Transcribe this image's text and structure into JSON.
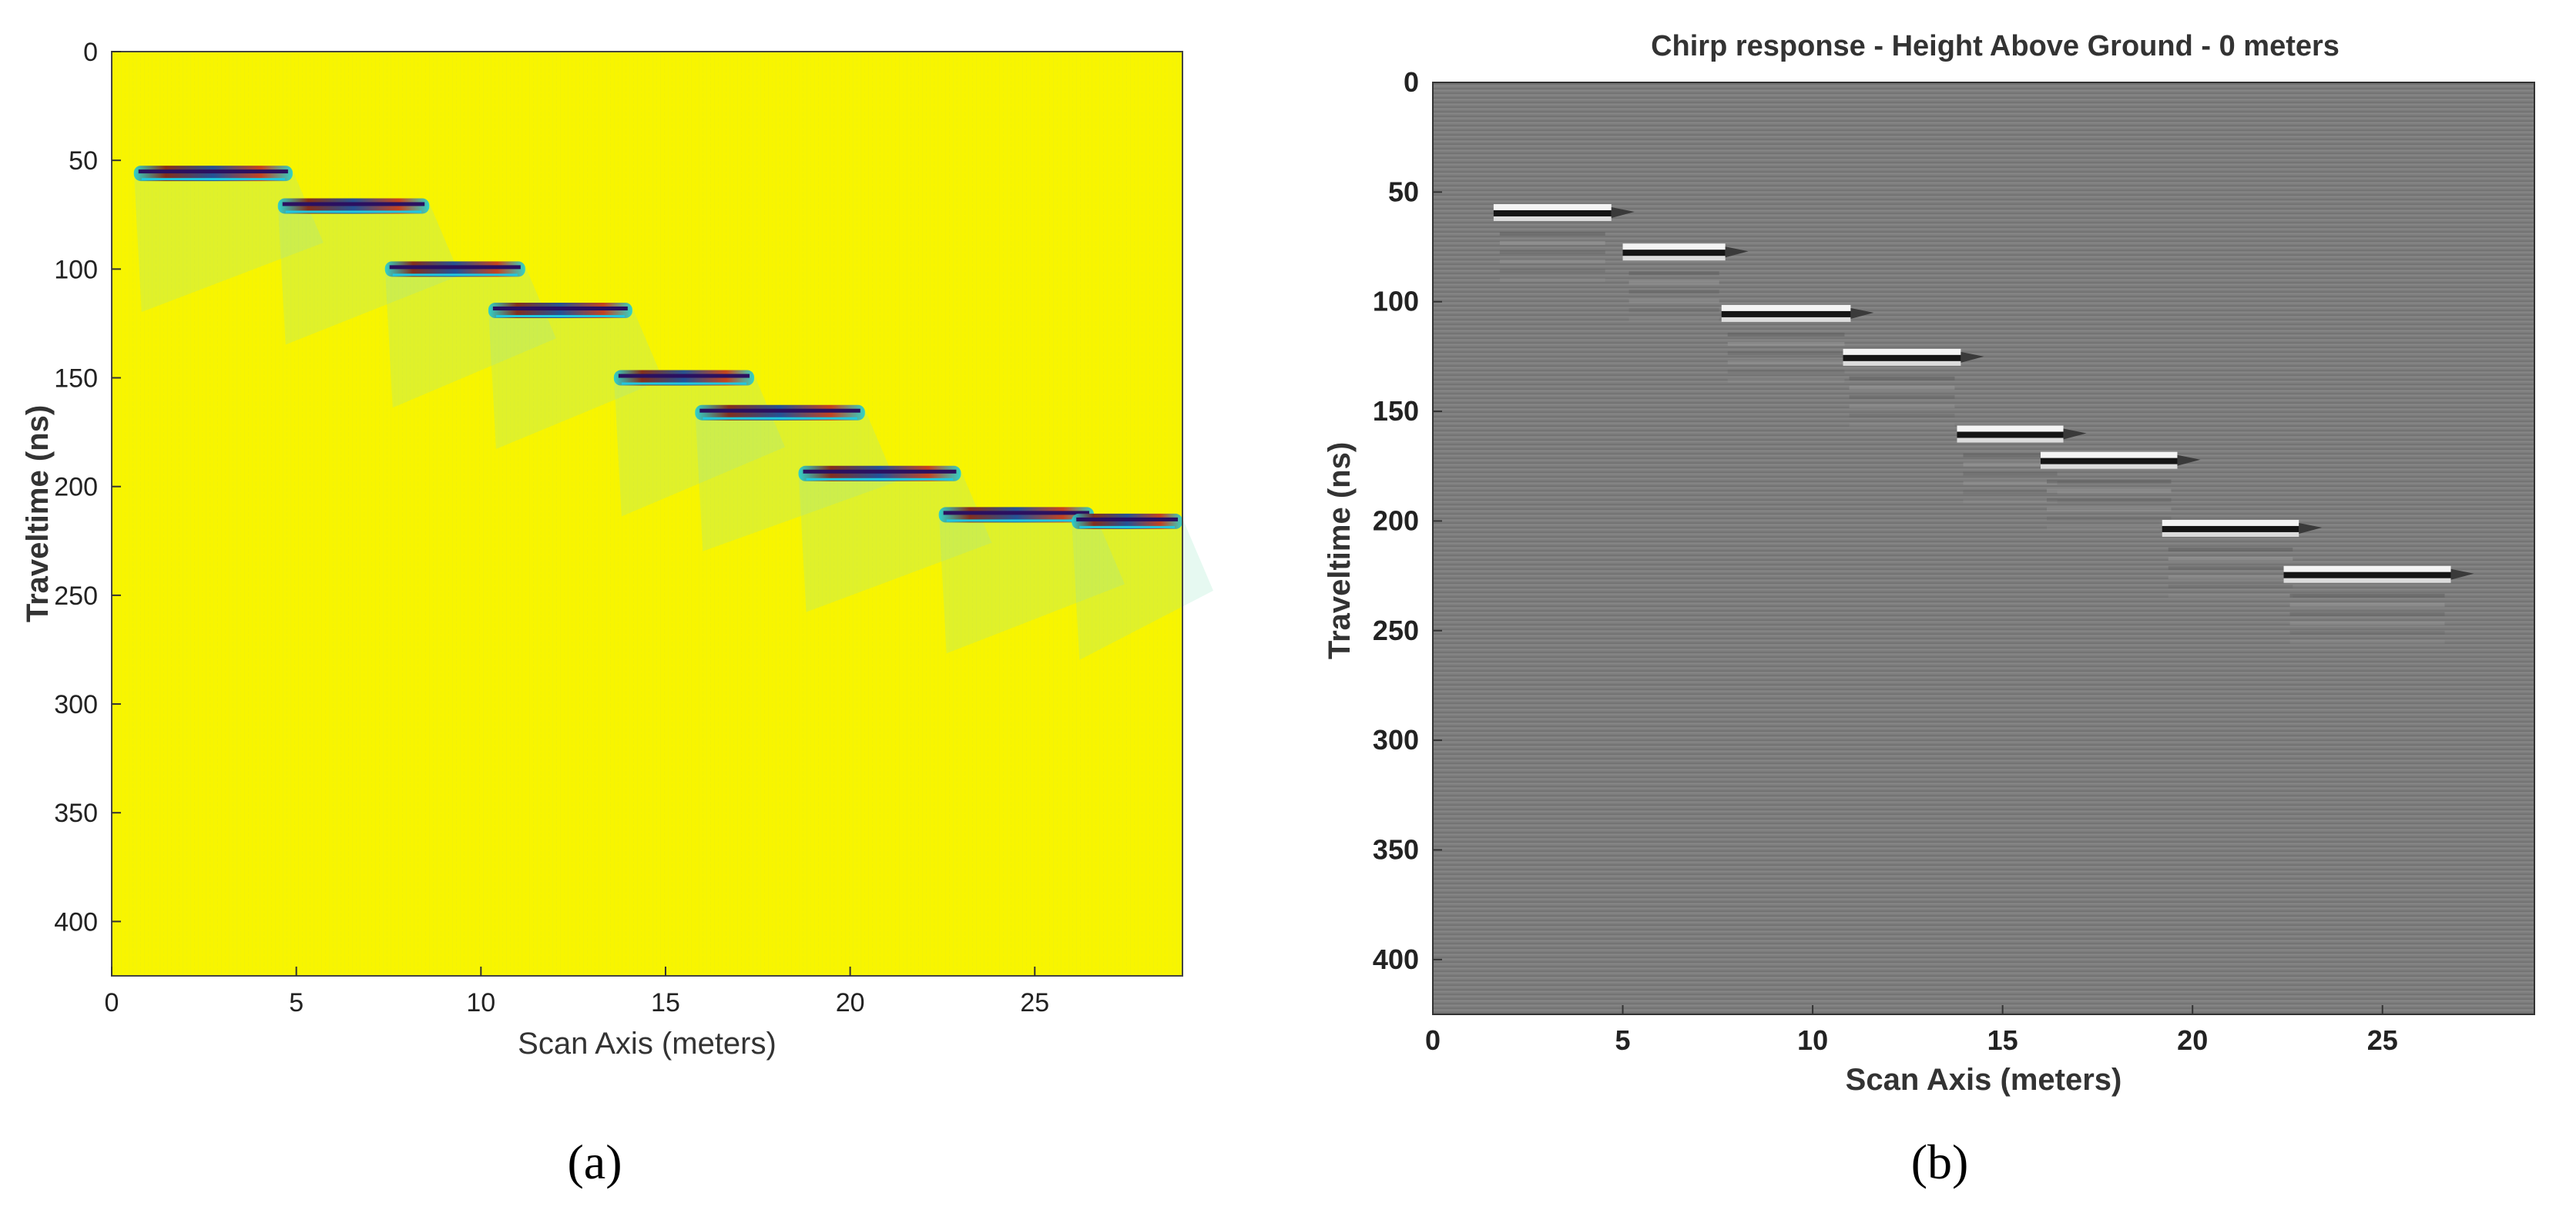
{
  "figure": {
    "panel_labels": [
      "(a)",
      "(b)"
    ]
  },
  "chart_data": [
    {
      "type": "heatmap",
      "panel": "(a)",
      "title": "",
      "xlabel": "Scan Axis (meters)",
      "ylabel": "Traveltime (ns)",
      "xlim": [
        0,
        29
      ],
      "ylim": [
        0,
        425
      ],
      "y_reversed": true,
      "xticks": [
        0,
        5,
        10,
        15,
        20,
        25
      ],
      "yticks": [
        0,
        50,
        100,
        150,
        200,
        250,
        300,
        350,
        400
      ],
      "colormap": "parula",
      "background_color": "#f8f500",
      "reflections": [
        {
          "x_start": 0.6,
          "x_end": 4.9,
          "t": 56
        },
        {
          "x_start": 4.5,
          "x_end": 8.6,
          "t": 71
        },
        {
          "x_start": 7.4,
          "x_end": 11.2,
          "t": 100
        },
        {
          "x_start": 10.2,
          "x_end": 14.1,
          "t": 119
        },
        {
          "x_start": 13.6,
          "x_end": 17.4,
          "t": 150
        },
        {
          "x_start": 15.8,
          "x_end": 20.4,
          "t": 166
        },
        {
          "x_start": 18.6,
          "x_end": 23.0,
          "t": 194
        },
        {
          "x_start": 22.4,
          "x_end": 26.6,
          "t": 213
        },
        {
          "x_start": 26.0,
          "x_end": 29.0,
          "t": 216
        }
      ]
    },
    {
      "type": "heatmap",
      "panel": "(b)",
      "title": "Chirp response - Height Above Ground - 0 meters",
      "xlabel": "Scan Axis (meters)",
      "ylabel": "Traveltime (ns)",
      "xlim": [
        0,
        29
      ],
      "ylim": [
        0,
        425
      ],
      "y_reversed": true,
      "xticks": [
        0,
        5,
        10,
        15,
        20,
        25
      ],
      "yticks": [
        0,
        50,
        100,
        150,
        200,
        250,
        300,
        350,
        400
      ],
      "colormap": "gray",
      "background_color": "#7d7d7d",
      "reflections": [
        {
          "x_start": 1.6,
          "x_end": 4.7,
          "t": 59
        },
        {
          "x_start": 5.0,
          "x_end": 7.7,
          "t": 77
        },
        {
          "x_start": 7.6,
          "x_end": 11.0,
          "t": 105
        },
        {
          "x_start": 10.8,
          "x_end": 13.9,
          "t": 125
        },
        {
          "x_start": 13.8,
          "x_end": 16.6,
          "t": 160
        },
        {
          "x_start": 16.0,
          "x_end": 19.6,
          "t": 172
        },
        {
          "x_start": 19.2,
          "x_end": 22.8,
          "t": 203
        },
        {
          "x_start": 22.4,
          "x_end": 26.8,
          "t": 224
        }
      ]
    }
  ]
}
